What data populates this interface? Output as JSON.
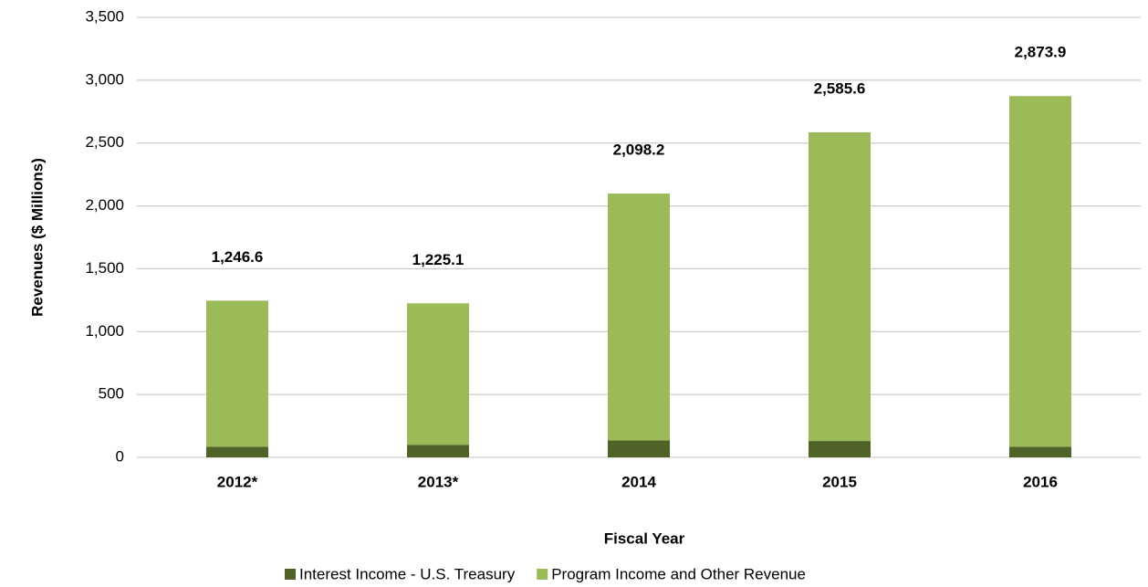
{
  "chart_data": {
    "type": "stacked_bar",
    "y_label": "Revenues ($ Millions)",
    "x_label": "Fiscal Year",
    "categories": [
      "2012*",
      "2013*",
      "2014",
      "2015",
      "2016"
    ],
    "series": [
      {
        "name": "Interest Income - U.S. Treasury",
        "color": "#4f6228",
        "values": [
          85,
          100,
          135,
          130,
          85
        ]
      },
      {
        "name": "Program Income and Other Revenue",
        "color": "#9bbb59",
        "values": [
          1161.6,
          1125.1,
          1963.2,
          2455.6,
          2788.9
        ]
      }
    ],
    "totals": [
      1246.6,
      1225.1,
      2098.2,
      2585.6,
      2873.9
    ],
    "total_labels": [
      "1,246.6",
      "1,225.1",
      "2,098.2",
      "2,585.6",
      "2,873.9"
    ],
    "ylim": [
      0,
      3500
    ],
    "yticks": [
      0,
      500,
      {
        "value": 1000,
        "label": "1,000"
      },
      {
        "value": 1500,
        "label": "1,500"
      },
      {
        "value": 2000,
        "label": "2,000"
      },
      {
        "value": 2500,
        "label": "2,500"
      },
      {
        "value": 3000,
        "label": "3,000"
      },
      {
        "value": 3500,
        "label": "3,500"
      }
    ],
    "grid": true,
    "legend": "bottom"
  }
}
